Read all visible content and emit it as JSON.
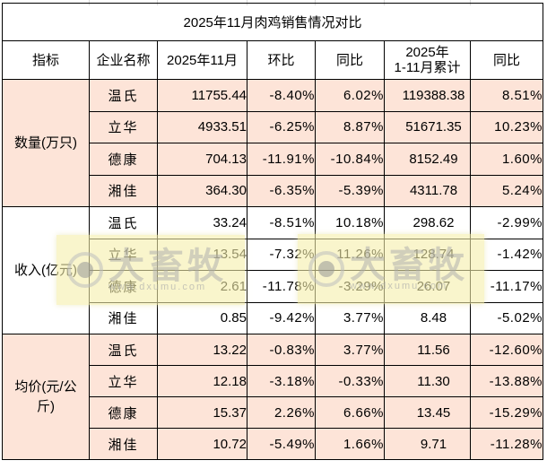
{
  "title": "2025年11月肉鸡销售情况对比",
  "header": {
    "metric": "指标",
    "company": "企业名称",
    "month": "2025年11月",
    "mom": "环比",
    "yoy": "同比",
    "ytd_line1": "2025年",
    "ytd_line2": "1-11月累计",
    "ytd_yoy": "同比"
  },
  "colors": {
    "title": "#1a74c4",
    "positive": "#ff0000",
    "negative": "#1aaa50",
    "section_fill": "#fde4d8"
  },
  "sections": [
    {
      "metric": "数量(万只)",
      "rows": [
        {
          "company": "温氏",
          "month": "11755.44",
          "mom": "-8.40%",
          "yoy": "6.02%",
          "ytd": "119388.38",
          "ytd_yoy": "8.51%"
        },
        {
          "company": "立华",
          "month": "4933.51",
          "mom": "-6.25%",
          "yoy": "8.87%",
          "ytd": "51671.35",
          "ytd_yoy": "10.23%"
        },
        {
          "company": "德康",
          "month": "704.13",
          "mom": "-11.91%",
          "yoy": "-10.84%",
          "ytd": "8152.49",
          "ytd_yoy": "1.60%"
        },
        {
          "company": "湘佳",
          "month": "364.30",
          "mom": "-6.35%",
          "yoy": "-5.39%",
          "ytd": "4311.78",
          "ytd_yoy": "5.24%"
        }
      ]
    },
    {
      "metric": "收入(亿元)",
      "rows": [
        {
          "company": "温氏",
          "month": "33.24",
          "mom": "-8.51%",
          "yoy": "10.18%",
          "ytd": "298.62",
          "ytd_yoy": "-2.99%"
        },
        {
          "company": "立华",
          "month": "13.54",
          "mom": "-7.32%",
          "yoy": "11.26%",
          "ytd": "128.74",
          "ytd_yoy": "-1.42%"
        },
        {
          "company": "德康",
          "month": "2.61",
          "mom": "-11.78%",
          "yoy": "-3.29%",
          "ytd": "26.07",
          "ytd_yoy": "-11.17%"
        },
        {
          "company": "湘佳",
          "month": "0.85",
          "mom": "-9.42%",
          "yoy": "3.77%",
          "ytd": "8.48",
          "ytd_yoy": "-5.02%"
        }
      ]
    },
    {
      "metric": "均价(元/公斤)",
      "rows": [
        {
          "company": "温氏",
          "month": "13.22",
          "mom": "-0.83%",
          "yoy": "3.77%",
          "ytd": "11.56",
          "ytd_yoy": "-12.60%"
        },
        {
          "company": "立华",
          "month": "12.18",
          "mom": "-3.18%",
          "yoy": "-0.33%",
          "ytd": "11.30",
          "ytd_yoy": "-13.88%"
        },
        {
          "company": "德康",
          "month": "15.37",
          "mom": "2.26%",
          "yoy": "6.66%",
          "ytd": "13.45",
          "ytd_yoy": "-15.29%"
        },
        {
          "company": "湘佳",
          "month": "10.72",
          "mom": "-5.49%",
          "yoy": "1.66%",
          "ytd": "9.71",
          "ytd_yoy": "-11.28%"
        }
      ]
    }
  ],
  "watermark": {
    "brand": "大畜牧",
    "url": "www.dxumu.com",
    "icon": "eye-logo-icon"
  }
}
